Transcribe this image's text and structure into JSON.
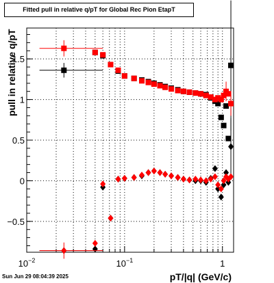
{
  "chart_data": {
    "type": "scatter",
    "title": "Fitted pull in relative q/pT for Global Rec Pion EtapT",
    "xlabel": "pT/|q| (GeV/c)",
    "ylabel": "pull in relative q/pT",
    "x_scale": "log",
    "xlim": [
      0.01,
      1.3
    ],
    "ylim": [
      -0.88,
      1.88
    ],
    "grid": true,
    "x_ticks": [
      {
        "value": 0.01,
        "label": "10"
      },
      {
        "value": 0.1,
        "label": "10"
      },
      {
        "value": 1,
        "label": "1"
      }
    ],
    "x_tick_exponents": [
      "−2",
      "−1"
    ],
    "y_ticks": [
      {
        "value": -0.5,
        "label": "−0.5"
      },
      {
        "value": 0,
        "label": "0"
      },
      {
        "value": 0.5,
        "label": "0.5"
      },
      {
        "value": 1,
        "label": "1"
      },
      {
        "value": 1.5,
        "label": "1.5"
      }
    ],
    "series": [
      {
        "color": "#000000",
        "marker": "square",
        "points": [
          {
            "x": 0.024,
            "y": 1.36,
            "xerr": [
              0.0105,
              0.036
            ],
            "yerr": 0.09
          },
          {
            "x": 0.05,
            "y": 1.58
          },
          {
            "x": 0.06,
            "y": 1.54
          },
          {
            "x": 0.072,
            "y": 1.43
          },
          {
            "x": 0.086,
            "y": 1.35
          },
          {
            "x": 0.1,
            "y": 1.29
          },
          {
            "x": 0.125,
            "y": 1.26
          },
          {
            "x": 0.15,
            "y": 1.24
          },
          {
            "x": 0.175,
            "y": 1.22
          },
          {
            "x": 0.2,
            "y": 1.2
          },
          {
            "x": 0.23,
            "y": 1.18
          },
          {
            "x": 0.26,
            "y": 1.16
          },
          {
            "x": 0.3,
            "y": 1.14
          },
          {
            "x": 0.35,
            "y": 1.12
          },
          {
            "x": 0.4,
            "y": 1.1
          },
          {
            "x": 0.46,
            "y": 1.09
          },
          {
            "x": 0.53,
            "y": 1.08
          },
          {
            "x": 0.6,
            "y": 1.07
          },
          {
            "x": 0.68,
            "y": 1.06
          },
          {
            "x": 0.76,
            "y": 1.02
          },
          {
            "x": 0.84,
            "y": 0.98
          },
          {
            "x": 0.9,
            "y": 0.95
          },
          {
            "x": 0.97,
            "y": 0.78
          },
          {
            "x": 1.03,
            "y": 0.68
          },
          {
            "x": 1.09,
            "y": 0.92
          },
          {
            "x": 1.15,
            "y": 0.52
          },
          {
            "x": 1.22,
            "y": 1.42,
            "yerr": 0.8
          }
        ]
      },
      {
        "color": "#000000",
        "marker": "diamond",
        "points": [
          {
            "x": 0.024,
            "y": -0.86,
            "xerr": [
              0.0105,
              0.036
            ],
            "yerr": 0.02
          },
          {
            "x": 0.05,
            "y": -0.84
          },
          {
            "x": 0.06,
            "y": -0.08
          },
          {
            "x": 0.072,
            "y": -0.46
          },
          {
            "x": 0.086,
            "y": 0.02
          },
          {
            "x": 0.1,
            "y": 0.03
          },
          {
            "x": 0.125,
            "y": 0.04
          },
          {
            "x": 0.15,
            "y": 0.06
          },
          {
            "x": 0.175,
            "y": 0.1
          },
          {
            "x": 0.2,
            "y": 0.12
          },
          {
            "x": 0.23,
            "y": 0.1
          },
          {
            "x": 0.26,
            "y": 0.08
          },
          {
            "x": 0.3,
            "y": 0.06
          },
          {
            "x": 0.35,
            "y": 0.04
          },
          {
            "x": 0.4,
            "y": 0.02
          },
          {
            "x": 0.46,
            "y": 0.01
          },
          {
            "x": 0.53,
            "y": 0.0
          },
          {
            "x": 0.6,
            "y": 0.0
          },
          {
            "x": 0.68,
            "y": -0.02
          },
          {
            "x": 0.76,
            "y": 0.03
          },
          {
            "x": 0.84,
            "y": 0.15
          },
          {
            "x": 0.9,
            "y": -0.1
          },
          {
            "x": 0.97,
            "y": -0.2
          },
          {
            "x": 1.03,
            "y": -0.05
          },
          {
            "x": 1.09,
            "y": 0.1
          },
          {
            "x": 1.15,
            "y": -0.02
          },
          {
            "x": 1.22,
            "y": 0.42,
            "yerr": 0.35
          }
        ]
      },
      {
        "color": "#ff0000",
        "marker": "square",
        "points": [
          {
            "x": 0.024,
            "y": 1.63,
            "xerr": [
              0.0105,
              0.036
            ],
            "yerr": 0.1
          },
          {
            "x": 0.05,
            "y": 1.58
          },
          {
            "x": 0.06,
            "y": 1.55
          },
          {
            "x": 0.072,
            "y": 1.43
          },
          {
            "x": 0.086,
            "y": 1.36
          },
          {
            "x": 0.1,
            "y": 1.29
          },
          {
            "x": 0.125,
            "y": 1.26
          },
          {
            "x": 0.15,
            "y": 1.23
          },
          {
            "x": 0.175,
            "y": 1.21
          },
          {
            "x": 0.2,
            "y": 1.19
          },
          {
            "x": 0.23,
            "y": 1.17
          },
          {
            "x": 0.26,
            "y": 1.15
          },
          {
            "x": 0.3,
            "y": 1.13
          },
          {
            "x": 0.35,
            "y": 1.11
          },
          {
            "x": 0.4,
            "y": 1.1
          },
          {
            "x": 0.46,
            "y": 1.09
          },
          {
            "x": 0.53,
            "y": 1.08
          },
          {
            "x": 0.6,
            "y": 1.07
          },
          {
            "x": 0.68,
            "y": 1.05
          },
          {
            "x": 0.76,
            "y": 1.03
          },
          {
            "x": 0.84,
            "y": 1.0
          },
          {
            "x": 0.9,
            "y": 1.02
          },
          {
            "x": 0.97,
            "y": 1.0
          },
          {
            "x": 1.03,
            "y": 1.05
          },
          {
            "x": 1.09,
            "y": 1.1,
            "yerr": 0.12
          },
          {
            "x": 1.15,
            "y": 1.07
          },
          {
            "x": 1.22,
            "y": 0.95,
            "yerr": 0.15
          }
        ]
      },
      {
        "color": "#ff0000",
        "marker": "diamond",
        "points": [
          {
            "x": 0.024,
            "y": -0.86,
            "xerr": [
              0.0105,
              0.036
            ],
            "yerr": 0.1
          },
          {
            "x": 0.05,
            "y": -0.77
          },
          {
            "x": 0.06,
            "y": -0.04
          },
          {
            "x": 0.072,
            "y": -0.46
          },
          {
            "x": 0.086,
            "y": 0.02
          },
          {
            "x": 0.1,
            "y": 0.03
          },
          {
            "x": 0.125,
            "y": 0.04
          },
          {
            "x": 0.15,
            "y": 0.07
          },
          {
            "x": 0.175,
            "y": 0.1
          },
          {
            "x": 0.2,
            "y": 0.12
          },
          {
            "x": 0.23,
            "y": 0.1
          },
          {
            "x": 0.26,
            "y": 0.08
          },
          {
            "x": 0.3,
            "y": 0.06
          },
          {
            "x": 0.35,
            "y": 0.04
          },
          {
            "x": 0.4,
            "y": 0.02
          },
          {
            "x": 0.46,
            "y": 0.01
          },
          {
            "x": 0.53,
            "y": 0.02
          },
          {
            "x": 0.6,
            "y": 0.01
          },
          {
            "x": 0.68,
            "y": 0.0
          },
          {
            "x": 0.76,
            "y": 0.02
          },
          {
            "x": 0.84,
            "y": 0.05
          },
          {
            "x": 0.9,
            "y": -0.05
          },
          {
            "x": 0.97,
            "y": -0.1
          },
          {
            "x": 1.03,
            "y": 0.0
          },
          {
            "x": 1.09,
            "y": 0.05
          },
          {
            "x": 1.15,
            "y": 0.02
          },
          {
            "x": 1.22,
            "y": 0.05
          }
        ]
      }
    ]
  },
  "footer": {
    "timestamp": "Sun Jun 29 08:04:39 2025"
  }
}
